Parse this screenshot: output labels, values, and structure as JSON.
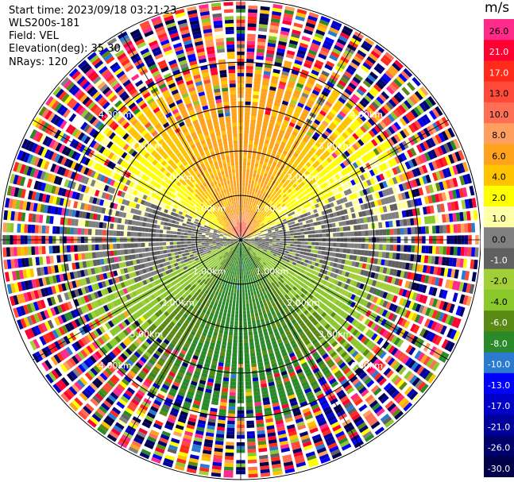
{
  "header": {
    "start_time": "Start time: 2023/09/18 03:21:23",
    "instrument": "WLS200s-181",
    "field": "Field: VEL",
    "elevation": "Elevation(deg): 35.30",
    "nrays": "NRays: 120"
  },
  "colorbar": {
    "unit": "m/s",
    "levels": [
      {
        "label": "26.0",
        "color": "#ff2a8a"
      },
      {
        "label": "21.0",
        "color": "#ff0033"
      },
      {
        "label": "17.0",
        "color": "#ff2a1a"
      },
      {
        "label": "13.0",
        "color": "#ff4a3a"
      },
      {
        "label": "10.0",
        "color": "#ff6f55"
      },
      {
        "label": "8.0",
        "color": "#ffa060"
      },
      {
        "label": "6.0",
        "color": "#ffa21c"
      },
      {
        "label": "4.0",
        "color": "#ffc400"
      },
      {
        "label": "2.0",
        "color": "#ffff00"
      },
      {
        "label": "1.0",
        "color": "#ffffa8"
      },
      {
        "label": "0.0",
        "color": "#808080"
      },
      {
        "label": "-1.0",
        "color": "#606060"
      },
      {
        "label": "-2.0",
        "color": "#a2cf38"
      },
      {
        "label": "-4.0",
        "color": "#8ac82c"
      },
      {
        "label": "-6.0",
        "color": "#5a8a14"
      },
      {
        "label": "-8.0",
        "color": "#2a8a2a"
      },
      {
        "label": "-10.0",
        "color": "#2a7ad0"
      },
      {
        "label": "-13.0",
        "color": "#0000ff"
      },
      {
        "label": "-17.0",
        "color": "#0000c8"
      },
      {
        "label": "-21.0",
        "color": "#00009a"
      },
      {
        "label": "-26.0",
        "color": "#00006a"
      },
      {
        "label": "-30.0",
        "color": "#00004a"
      }
    ]
  },
  "chart_data": {
    "type": "heatmap",
    "projection": "polar PPI (plan position indicator)",
    "field": "VEL",
    "elevation_deg": 35.3,
    "n_rays": 120,
    "range_rings": [
      {
        "label": "1.00km"
      },
      {
        "label": "2.00km"
      },
      {
        "label": "3.00km"
      },
      {
        "label": "4.00km"
      }
    ],
    "range_ring_km": [
      1,
      2,
      3,
      4
    ],
    "max_range_km": 5.4,
    "spokes_deg": [
      0,
      30,
      60,
      90,
      120,
      150,
      180,
      210,
      240,
      270,
      300,
      330
    ],
    "velocity_pattern": {
      "north_sector": "positive, 1 to 8 m/s (yellow/orange), small 8-13 m/s core near origin",
      "south_sector": "negative, -2 to -8 m/s (green)",
      "east_west_band": "near zero (grey)",
      "outer_ranges": "noisy, full color range"
    }
  }
}
